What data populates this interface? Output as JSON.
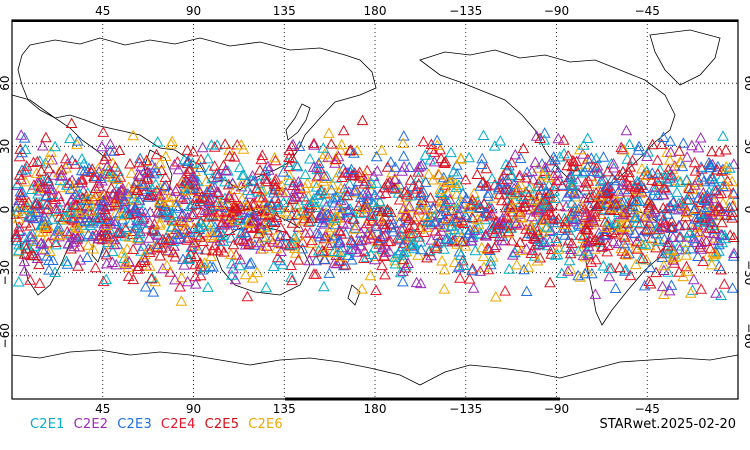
{
  "map": {
    "projection": "equirectangular",
    "lon_range": [
      0,
      360
    ],
    "lat_range": [
      -90,
      90
    ],
    "grid": "dotted",
    "top_lon_labels": [
      "45",
      "90",
      "135",
      "180",
      "−135",
      "−90",
      "−45"
    ],
    "bottom_lon_labels": [
      "45",
      "90",
      "135",
      "180",
      "−135",
      "−90",
      "−45"
    ],
    "lat_labels": [
      "60",
      "30",
      "0",
      "−30",
      "−60"
    ],
    "marker": "open-triangle"
  },
  "legend": {
    "items": [
      {
        "label": "C2E1",
        "color": "#00b0c8"
      },
      {
        "label": "C2E2",
        "color": "#9c2ab8"
      },
      {
        "label": "C2E3",
        "color": "#1f6fe0"
      },
      {
        "label": "C2E4",
        "color": "#e8142a"
      },
      {
        "label": "C2E5",
        "color": "#d01018"
      },
      {
        "label": "C2E6",
        "color": "#f0a800"
      }
    ]
  },
  "footer": {
    "stamp": "STARwet.2025-02-20"
  }
}
